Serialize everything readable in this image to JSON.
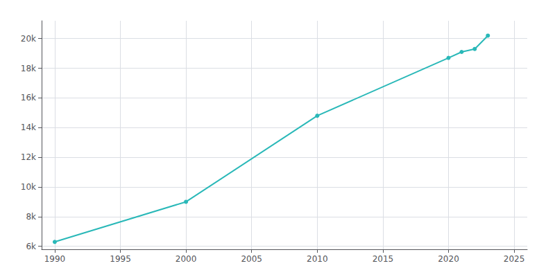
{
  "chart_data": {
    "type": "line",
    "x": [
      1990,
      2000,
      2010,
      2020,
      2021,
      2022,
      2023
    ],
    "values": [
      6300,
      9000,
      14800,
      18700,
      19100,
      19300,
      20200
    ],
    "color": "#29b8b8",
    "marker": "circle",
    "xlim": [
      1989,
      2026
    ],
    "xticks": [
      1990,
      1995,
      2000,
      2005,
      2010,
      2015,
      2020,
      2025
    ],
    "ylim": [
      5800,
      21200
    ],
    "yticks": [
      {
        "value": 6000,
        "label": "6k"
      },
      {
        "value": 8000,
        "label": "8k"
      },
      {
        "value": 10000,
        "label": "10k"
      },
      {
        "value": 12000,
        "label": "12k"
      },
      {
        "value": 14000,
        "label": "14k"
      },
      {
        "value": 16000,
        "label": "16k"
      },
      {
        "value": 18000,
        "label": "18k"
      },
      {
        "value": 20000,
        "label": "20k"
      }
    ],
    "grid": true
  }
}
